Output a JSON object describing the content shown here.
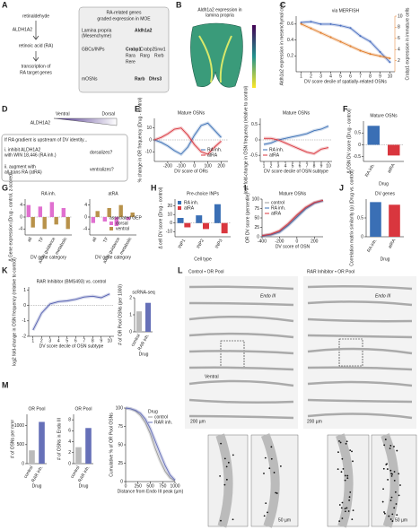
{
  "figure": {
    "panel_letters": [
      "A",
      "B",
      "C",
      "D",
      "E",
      "F",
      "G",
      "H",
      "I",
      "J",
      "K",
      "L",
      "M"
    ],
    "a": {
      "steps": [
        "retinaldehyde",
        "ALDH1A2",
        "retinoic acid (RA)",
        "transcription of",
        "RA target genes"
      ]
    },
    "table": {
      "title": "RA-related genes",
      "subtitle": "graded expression in MOE",
      "rows": [
        {
          "cell": [
            "Lamina propria",
            "(Mesenchyme)"
          ],
          "genes": [
            "Aldh1a2"
          ]
        },
        {
          "cell": [
            "GBCs/INPs"
          ],
          "genes": [
            "Crabp1",
            "Crabp2",
            "Snw1",
            "Rara",
            "Rarg",
            "Rxrb",
            "Rere"
          ]
        },
        {
          "cell": [
            "mOSNs"
          ],
          "genes": [
            "Rarb",
            "Dhrs3"
          ]
        }
      ]
    },
    "b": {
      "title": [
        "Aldh1a2 expression in",
        "lamina propria"
      ]
    },
    "d": {
      "ventral": "Ventral",
      "dorsal": "Dorsal",
      "gene": "ALDH1A2",
      "question": "If RA gradient is upstream of DV identity...",
      "i": [
        "i. inhibit ALDH1A2",
        "with WIN 18,446 (RA inh.)"
      ],
      "i_result": "dorsalizes?",
      "ii": [
        "ii. augment with",
        "all-trans RA (atRA)"
      ],
      "ii_result": "ventralizes?"
    },
    "l": {
      "control": "Control • OR Pool",
      "rar": "RAR Inhibitor • OR Pool",
      "endo": "Endo III",
      "scale_big": "200 µm",
      "scale_small": "50 µm",
      "ventral": "Ventral"
    }
  },
  "chart_data": [
    {
      "type": "line",
      "title": "via MERFISH",
      "xlabel": "DV score decile of spatially-related OSNs",
      "ylabel": "Aldh1a2 expression in mesenchymal cells",
      "y2label": "Crabp1 expression in immature cells",
      "x": [
        1,
        2,
        3,
        4,
        5,
        6,
        7,
        8,
        9,
        10
      ],
      "xlim": [
        0.5,
        10.5
      ],
      "xticks": [
        1,
        2,
        3,
        4,
        5,
        6,
        7,
        8,
        9,
        10
      ],
      "ylim": [
        0,
        0.7
      ],
      "yticks": [
        0.2,
        0.4,
        0.6
      ],
      "y2lim": [
        0,
        10
      ],
      "y2ticks": [
        2,
        4,
        6,
        8,
        10
      ],
      "series": [
        {
          "name": "Aldh1a2",
          "color": "#4a6fc0",
          "values": [
            0.62,
            0.63,
            0.6,
            0.6,
            0.58,
            0.55,
            0.45,
            0.38,
            0.25,
            0.12
          ]
        },
        {
          "name": "Crabp1",
          "color": "#e07b28",
          "axis": "y2",
          "values": [
            8.6,
            7.8,
            7,
            6.2,
            5.4,
            4.6,
            3.8,
            3.2,
            2.8,
            2.4
          ]
        }
      ]
    },
    {
      "type": "line",
      "title": "Mature OSNs",
      "xlabel": "DV score of ORs",
      "ylabel": "% change in OR frequency (Drug - control)",
      "x": [
        -300,
        -250,
        -200,
        -150,
        -100,
        -50,
        0,
        50,
        100,
        150,
        200
      ],
      "xlim": [
        -300,
        250
      ],
      "xticks": [
        -200,
        -100,
        0,
        100,
        200
      ],
      "ylim": [
        -18,
        18
      ],
      "yticks": [
        -10,
        0,
        10
      ],
      "legend": "lower right",
      "series": [
        {
          "name": "RA inh.",
          "color": "#3a6fb5",
          "values": [
            0,
            -2,
            -5,
            -9,
            -12,
            -6,
            4,
            12,
            14,
            8,
            2
          ]
        },
        {
          "name": "atRA",
          "color": "#d9363e",
          "values": [
            0,
            2,
            5,
            9,
            10,
            4,
            -4,
            -10,
            -12,
            -6,
            -1
          ]
        }
      ]
    },
    {
      "type": "line",
      "title": "Mature OSNs",
      "xlabel": "DV score decile of OSN subtype",
      "ylabel": "log2 fold-change in OSN frequency (relative to control)",
      "x": [
        1,
        2,
        3,
        4,
        5,
        6,
        7,
        8,
        9,
        10
      ],
      "xlim": [
        0.5,
        10.5
      ],
      "xticks": [
        1,
        2,
        3,
        4,
        5,
        6,
        7,
        8,
        9,
        10
      ],
      "ylim": [
        -0.7,
        0.7
      ],
      "yticks": [
        -0.5,
        0,
        0.5
      ],
      "legend": "lower left",
      "series": [
        {
          "name": "RA inh.",
          "color": "#3a6fb5",
          "values": [
            -0.15,
            -0.1,
            0,
            0.05,
            0.1,
            0.15,
            0.2,
            0.3,
            0.35,
            0.45
          ]
        },
        {
          "name": "atRA",
          "color": "#d9363e",
          "values": [
            0.05,
            0.05,
            0,
            -0.1,
            -0.2,
            -0.3,
            -0.4,
            -0.45,
            -0.3,
            -0.25
          ]
        }
      ]
    },
    {
      "type": "bar",
      "title": "Mature OSNs",
      "xlabel": "Drug",
      "ylabel": "Δ OSN DV score (Drug - control)",
      "categories": [
        "RA inh.",
        "atRA"
      ],
      "values": [
        0.8,
        -0.45
      ],
      "colors": [
        "#3a6fb5",
        "#d9363e"
      ],
      "ylim": [
        -0.7,
        1
      ],
      "yticks": [
        -0.5,
        0,
        0.5
      ]
    },
    {
      "type": "bar",
      "title": "RA inh.",
      "xlabel": "DV gene category",
      "ylabel": "Δ Gene expression (Drug - control, z-scored)",
      "categories": [
        "all",
        "TF",
        "axon guidance",
        "metabolic"
      ],
      "ylim": [
        -6,
        6
      ],
      "yticks": [
        -4,
        0,
        4
      ],
      "series": [
        {
          "name": "dorsal",
          "color": "#e070d0",
          "values": [
            4,
            3.5,
            5,
            3
          ]
        },
        {
          "name": "ventral",
          "color": "#b8924a",
          "values": [
            -3.5,
            -4,
            -2.5,
            -4
          ]
        }
      ]
    },
    {
      "type": "bar",
      "title": "atRA",
      "xlabel": "DV gene category",
      "categories": [
        "all",
        "TF",
        "axon guidance",
        "metabolic"
      ],
      "ylim": [
        -6,
        6
      ],
      "yticks": [
        -4,
        0,
        4
      ],
      "legend": "lower right",
      "legend_title": "associated GEP",
      "series": [
        {
          "name": "dorsal",
          "color": "#e070d0",
          "values": [
            -2,
            -1.5,
            -3,
            -1
          ]
        },
        {
          "name": "ventral",
          "color": "#b8924a",
          "values": [
            2,
            3,
            4,
            1.5
          ]
        }
      ]
    },
    {
      "type": "bar",
      "title": "Pre-choice INPs",
      "xlabel": "Cell type",
      "ylabel": "Δ cell DV score (Drug - control)",
      "categories": [
        "INP1",
        "INP2",
        "INP3"
      ],
      "ylim": [
        -16,
        28
      ],
      "yticks": [
        -10,
        0,
        10,
        20
      ],
      "legend": "upper left",
      "series": [
        {
          "name": "RA inh.",
          "color": "#3a6fb5",
          "values": [
            6,
            9,
            22
          ]
        },
        {
          "name": "atRA",
          "color": "#d9363e",
          "values": [
            -5,
            -7,
            -12
          ]
        }
      ]
    },
    {
      "type": "line",
      "title": "Mature OSNs",
      "xlabel": "DV score of OSN",
      "ylabel": "OR DV score (percentile)",
      "x": [
        -400,
        -300,
        -200,
        -100,
        0,
        100,
        200,
        300
      ],
      "xlim": [
        -400,
        300
      ],
      "xticks": [
        -400,
        -200,
        0,
        200
      ],
      "ylim": [
        0,
        100
      ],
      "yticks": [
        0,
        25,
        50,
        75,
        100
      ],
      "legend": "upper left",
      "series": [
        {
          "name": "control",
          "color": "#999999",
          "values": [
            2,
            6,
            14,
            32,
            55,
            76,
            90,
            96
          ]
        },
        {
          "name": "RA inh.",
          "color": "#3a6fb5",
          "values": [
            2,
            5,
            12,
            30,
            52,
            74,
            89,
            96
          ]
        },
        {
          "name": "atRA",
          "color": "#d9363e",
          "values": [
            3,
            7,
            16,
            35,
            58,
            78,
            91,
            97
          ]
        }
      ]
    },
    {
      "type": "bar",
      "title": "DV genes",
      "xlabel": "Drug",
      "ylabel": "Correlation matrix similarity (ρ) (Drug vs. control)",
      "categories": [
        "RA inh.",
        "atRA"
      ],
      "values": [
        0.92,
        0.85
      ],
      "colors": [
        "#3a6fb5",
        "#d9363e"
      ],
      "ylim": [
        0,
        1
      ],
      "yticks": [
        0,
        0.5
      ]
    },
    {
      "type": "line",
      "title": "RAR Inhibitor (BMS493) vs. control",
      "xlabel": "DV score decile of OSN subtype",
      "ylabel": "log2 fold-change in OSN frequency (relative to control)",
      "x": [
        1,
        2,
        3,
        4,
        5,
        6,
        7,
        8,
        9,
        10
      ],
      "xlim": [
        0.5,
        10.5
      ],
      "xticks": [
        1,
        2,
        3,
        4,
        5,
        6,
        7,
        8,
        9,
        10
      ],
      "ylim": [
        -2,
        1.2
      ],
      "yticks": [
        -2,
        -1,
        0,
        1
      ],
      "series": [
        {
          "name": "RAR inh.",
          "color": "#5560b0",
          "values": [
            -1.6,
            -0.5,
            0.1,
            0.25,
            0.3,
            0.4,
            0.55,
            0.6,
            0.5,
            0.75
          ]
        }
      ]
    },
    {
      "type": "bar",
      "title": "scRNA-seq",
      "xlabel": "Drug",
      "ylabel": "# of OR Pool OSNs (per 1000)",
      "categories": [
        "control",
        "RAR inh."
      ],
      "values": [
        1.2,
        1.7
      ],
      "colors": [
        "#bbbbbb",
        "#6670b8"
      ],
      "ylim": [
        0,
        2
      ],
      "yticks": [
        0,
        1,
        2
      ]
    },
    {
      "type": "bar",
      "title": "OR Pool",
      "xlabel": "Drug",
      "ylabel": "# of OSNs per mm²",
      "categories": [
        "control",
        "RAR inh."
      ],
      "values": [
        350,
        1100
      ],
      "colors": [
        "#bbbbbb",
        "#6670b8"
      ],
      "ylim": [
        0,
        1300
      ],
      "yticks": [
        0,
        500,
        1000
      ]
    },
    {
      "type": "bar",
      "title": "OR Pool",
      "xlabel": "Drug",
      "ylabel": "# of OSNs in Endo III",
      "categories": [
        "control",
        "RAR inh."
      ],
      "values": [
        3,
        6.5
      ],
      "colors": [
        "#bbbbbb",
        "#6670b8"
      ],
      "ylim": [
        0,
        9
      ],
      "yticks": [
        0,
        2,
        4,
        6,
        8
      ]
    },
    {
      "type": "line",
      "xlabel": "Distance from Endo III peak (µm)",
      "ylabel": "Cumulative % of OR Pool OSNs",
      "x": [
        0,
        100,
        200,
        300,
        400,
        500,
        600,
        700,
        800,
        900,
        1000
      ],
      "xlim": [
        0,
        1000
      ],
      "xticks": [
        0,
        250,
        500,
        750,
        1000
      ],
      "ylim": [
        0,
        100
      ],
      "yticks": [
        0,
        25,
        50,
        75,
        100
      ],
      "legend": "upper right",
      "legend_title": "Drug",
      "series": [
        {
          "name": "control",
          "color": "#999999",
          "values": [
            100,
            99,
            96,
            90,
            80,
            65,
            45,
            28,
            14,
            5,
            1
          ]
        },
        {
          "name": "RAR inh.",
          "color": "#6670b8",
          "values": [
            100,
            99,
            97,
            93,
            85,
            72,
            55,
            38,
            22,
            9,
            2
          ]
        }
      ]
    }
  ]
}
